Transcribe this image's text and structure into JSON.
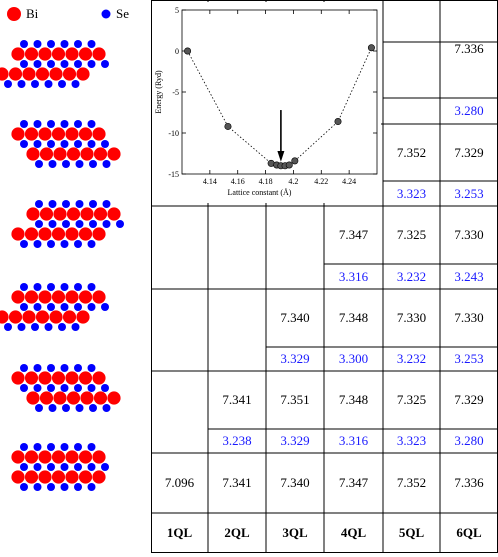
{
  "legend": {
    "bi": "Bi",
    "se": "Se",
    "bi_color": "#ff0000",
    "se_color": "#0000ff"
  },
  "table": {
    "headers": [
      "1QL",
      "2QL",
      "3QL",
      "4QL",
      "5QL",
      "6QL"
    ],
    "rows": [
      {
        "cols": [
          null,
          null,
          null,
          null,
          null,
          {
            "black": "7.336",
            "blue": "3.280"
          }
        ]
      },
      {
        "cols": [
          null,
          null,
          null,
          null,
          {
            "black": "7.352",
            "blue": "3.323"
          },
          {
            "black": "7.329",
            "blue": "3.253"
          }
        ]
      },
      {
        "cols": [
          null,
          null,
          null,
          {
            "black": "7.347",
            "blue": "3.316"
          },
          {
            "black": "7.325",
            "blue": "3.232"
          },
          {
            "black": "7.330",
            "blue": "3.243"
          }
        ]
      },
      {
        "cols": [
          null,
          null,
          {
            "black": "7.340",
            "blue": "3.329"
          },
          {
            "black": "7.348",
            "blue": "3.300"
          },
          {
            "black": "7.330",
            "blue": "3.232"
          },
          {
            "black": "7.330",
            "blue": "3.253"
          }
        ]
      },
      {
        "cols": [
          null,
          {
            "black": "7.341",
            "blue": "3.238"
          },
          {
            "black": "7.351",
            "blue": "3.329"
          },
          {
            "black": "7.348",
            "blue": "3.316"
          },
          {
            "black": "7.325",
            "blue": "3.323"
          },
          {
            "black": "7.329",
            "blue": "3.280"
          }
        ]
      },
      {
        "cols": [
          {
            "black": "7.096"
          },
          {
            "black": "7.341"
          },
          {
            "black": "7.340"
          },
          {
            "black": "7.347"
          },
          {
            "black": "7.352"
          },
          {
            "black": "7.336"
          }
        ]
      }
    ]
  },
  "chart_data": {
    "type": "scatter",
    "xlabel": "Lattice constant (Å)",
    "ylabel": "Energy (Ryd)",
    "xlim": [
      4.12,
      4.26
    ],
    "ylim": [
      -15,
      5
    ],
    "xticks": [
      "4.14",
      "4.16",
      "4.18",
      "4.2",
      "4.22",
      "4.24"
    ],
    "yticks": [
      "5",
      "0",
      "-5",
      "-10",
      "-15"
    ],
    "x": [
      4.124,
      4.153,
      4.184,
      4.188,
      4.191,
      4.194,
      4.197,
      4.201,
      4.232,
      4.256
    ],
    "y": [
      0,
      -9.2,
      -13.7,
      -13.9,
      -14.0,
      -14.0,
      -13.9,
      -13.4,
      -8.6,
      0.4
    ],
    "arrow_x": 4.191
  }
}
